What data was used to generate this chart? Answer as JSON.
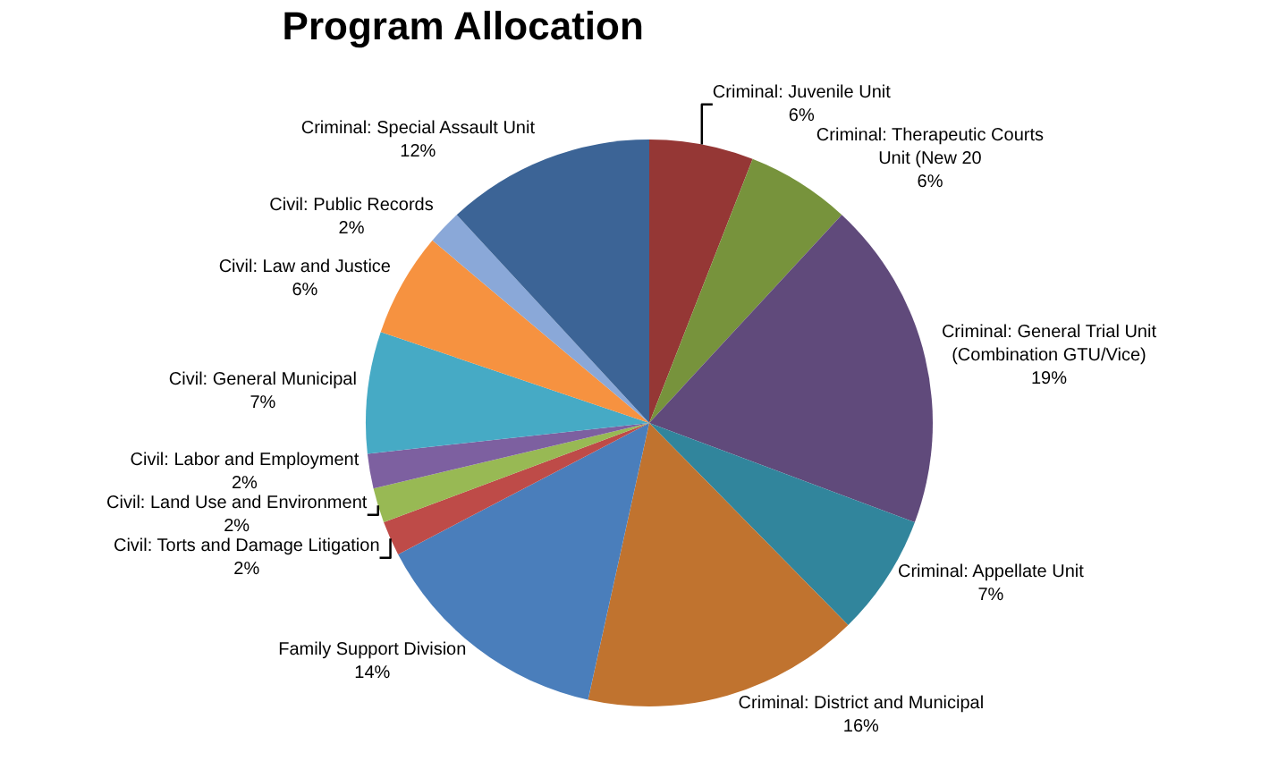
{
  "chart_data": {
    "type": "pie",
    "title": "Program Allocation",
    "categories": [
      "Criminal: Juvenile Unit",
      "Criminal: Therapeutic Courts Unit (New 20",
      "Criminal: General Trial Unit (Combination GTU/Vice)",
      "Criminal: Appellate Unit",
      "Criminal: District and Municipal",
      "Family Support Division",
      "Civil: Torts and Damage Litigation",
      "Civil: Land Use and Environment",
      "Civil: Labor and Employment",
      "Civil: General Municipal",
      "Civil: Law and Justice",
      "Civil: Public Records",
      "Criminal: Special Assault Unit"
    ],
    "values": [
      6,
      6,
      19,
      7,
      16,
      14,
      2,
      2,
      2,
      7,
      6,
      2,
      12
    ],
    "value_labels": [
      "6%",
      "6%",
      "19%",
      "7%",
      "16%",
      "14%",
      "2%",
      "2%",
      "2%",
      "7%",
      "6%",
      "2%",
      "12%"
    ],
    "colors": [
      "#953735",
      "#77933c",
      "#604a7b",
      "#31859c",
      "#c0732f",
      "#4a7ebb",
      "#be4b48",
      "#98b954",
      "#7d60a0",
      "#46aac5",
      "#f69240",
      "#8aa8d8",
      "#3c6496"
    ],
    "legend": false
  }
}
